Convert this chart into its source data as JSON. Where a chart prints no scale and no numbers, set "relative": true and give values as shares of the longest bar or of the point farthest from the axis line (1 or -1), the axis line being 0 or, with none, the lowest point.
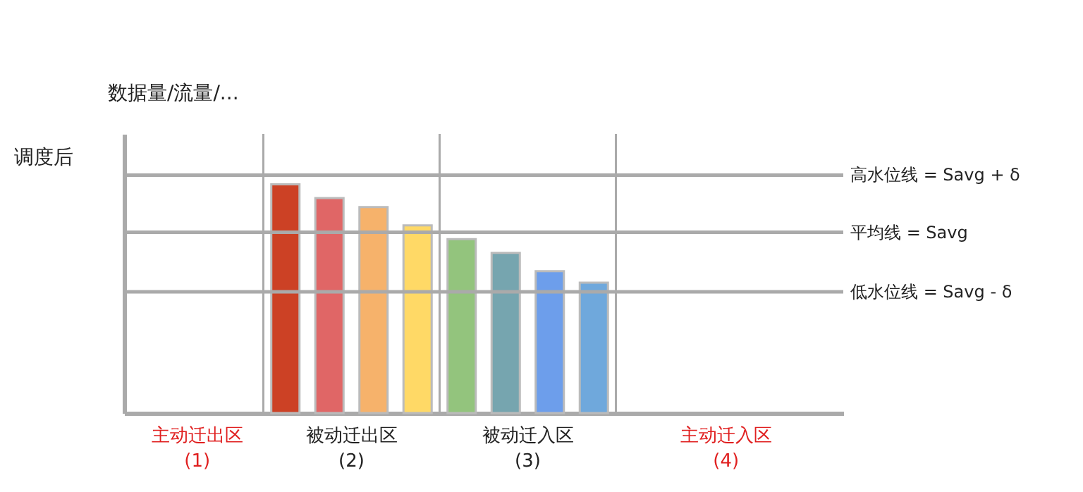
{
  "chart_data": {
    "type": "bar",
    "title": "调度后",
    "ylabel": "数据量/流量/...",
    "relative": true,
    "categories": [
      null,
      null,
      null,
      null,
      null,
      null,
      null,
      null
    ],
    "values": [
      1,
      0.94,
      0.9,
      0.82,
      0.76,
      0.7,
      0.62,
      0.57
    ],
    "colors": [
      "#cc4125",
      "#e06666",
      "#f6b26b",
      "#ffd966",
      "#93c47d",
      "#76a5af",
      "#6d9eeb",
      "#6fa8dc"
    ],
    "ref_lines": [
      {
        "axis": "y",
        "value": 1.04,
        "label": "高水位线 = Savg + δ",
        "color": "#aaaaaa"
      },
      {
        "axis": "y",
        "value": 0.79,
        "label": "平均线 = Savg",
        "color": "#aaaaaa"
      },
      {
        "axis": "y",
        "value": 0.53,
        "label": "低水位线 = Savg - δ",
        "color": "#aaaaaa"
      }
    ],
    "annotations": [
      "主动迁出区\n(1)",
      "被动迁出区\n(2)",
      "被动迁入区\n(3)",
      "主动迁入区\n(4)"
    ],
    "grid": false,
    "legend": false
  }
}
